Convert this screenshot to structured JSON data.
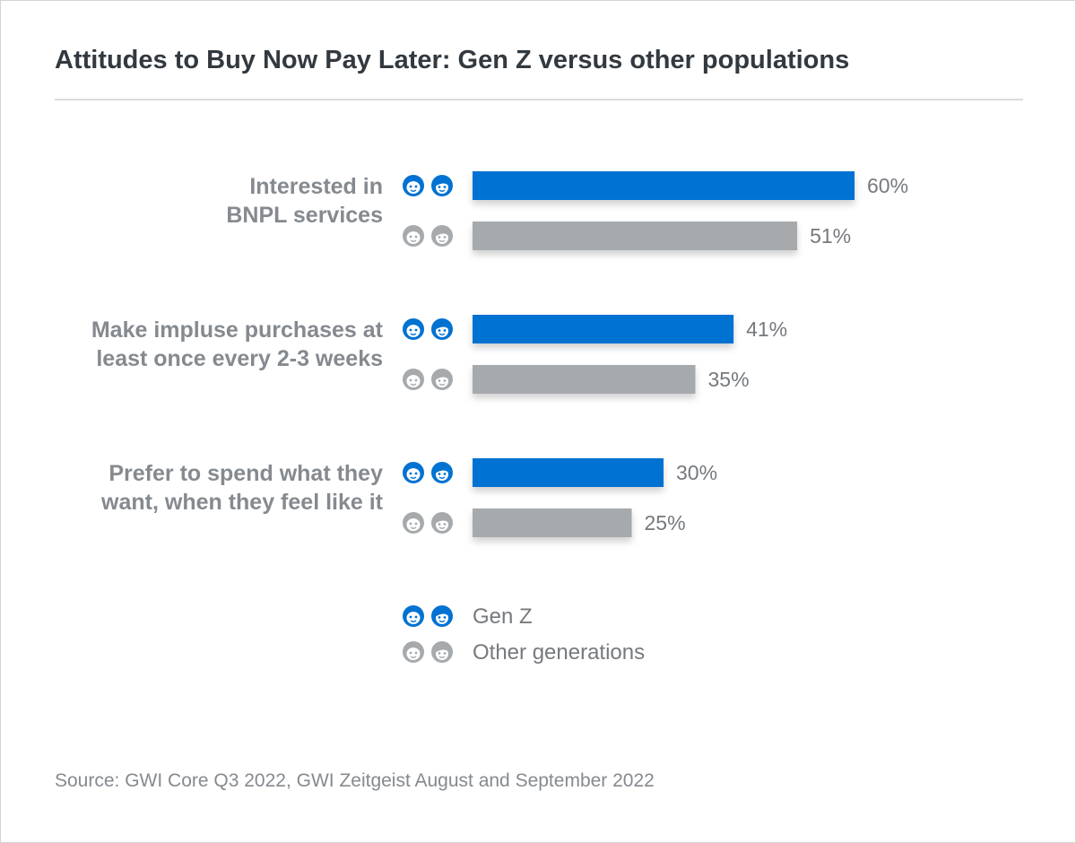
{
  "title": "Attitudes to Buy Now Pay Later: Gen Z versus other populations",
  "source": "Source: GWI Core Q3 2022, GWI Zeitgeist August and September 2022",
  "colors": {
    "gen_z": "#0072d2",
    "other": "#a6aaad"
  },
  "chart_data": {
    "type": "bar",
    "orientation": "horizontal",
    "categories": [
      [
        "Interested in",
        "BNPL services"
      ],
      [
        "Make impluse purchases at",
        "least once every 2-3 weeks"
      ],
      [
        "Prefer to spend what they",
        "want, when they feel like it"
      ]
    ],
    "series": [
      {
        "name": "Gen Z",
        "icon": "gen-z-people-icon",
        "values": [
          60,
          41,
          30
        ],
        "labels": [
          "60%",
          "41%",
          "30%"
        ]
      },
      {
        "name": "Other generations",
        "icon": "other-generations-people-icon",
        "values": [
          51,
          35,
          25
        ],
        "labels": [
          "51%",
          "35%",
          "25%"
        ]
      }
    ],
    "unit": "%",
    "grid": false,
    "legend_position": "bottom"
  }
}
